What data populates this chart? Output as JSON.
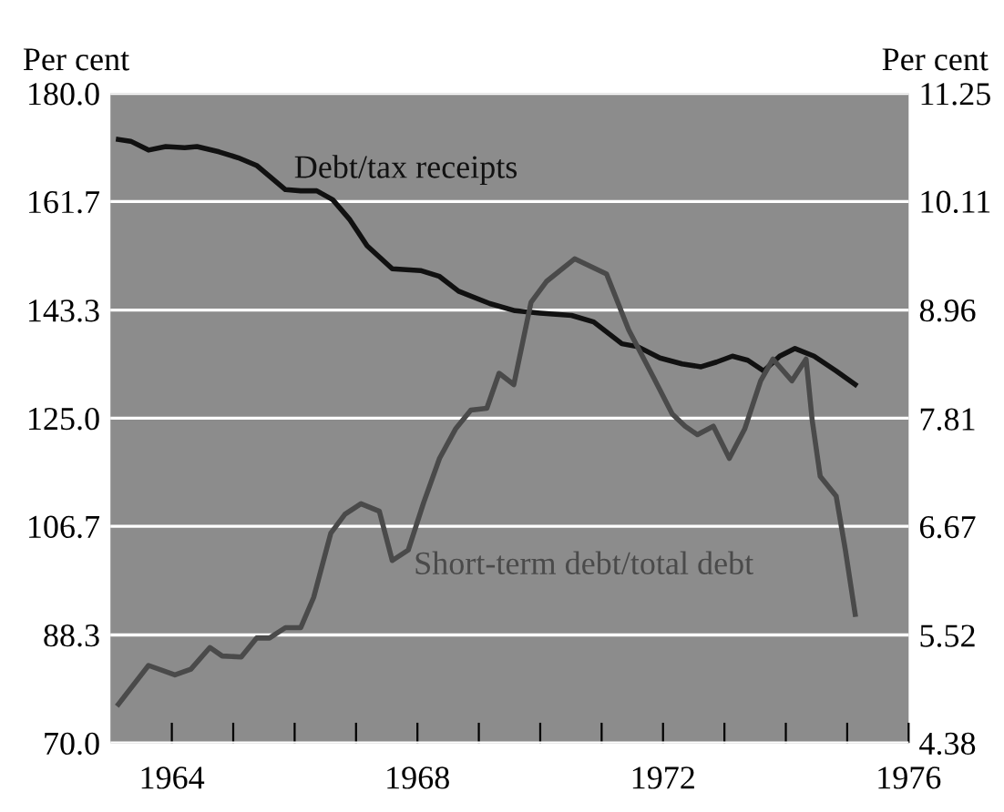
{
  "chart_data": {
    "type": "line",
    "ylabel": "Per cent",
    "y2label": "Per cent",
    "xlim": [
      1963,
      1976
    ],
    "xticks": [
      {
        "value": 1964,
        "label": "1964"
      },
      {
        "value": 1965,
        "label": null
      },
      {
        "value": 1966,
        "label": null
      },
      {
        "value": 1967,
        "label": null
      },
      {
        "value": 1968,
        "label": "1968"
      },
      {
        "value": 1969,
        "label": null
      },
      {
        "value": 1970,
        "label": null
      },
      {
        "value": 1971,
        "label": null
      },
      {
        "value": 1972,
        "label": "1972"
      },
      {
        "value": 1973,
        "label": null
      },
      {
        "value": 1974,
        "label": null
      },
      {
        "value": 1975,
        "label": null
      },
      {
        "value": 1976,
        "label": "1976"
      }
    ],
    "ylim": [
      70,
      180
    ],
    "yticks": [
      {
        "value": 70,
        "label": "70.0"
      },
      88.3,
      106.7,
      {
        "value": 125,
        "label": "125.0"
      },
      143.3,
      161.7,
      {
        "value": 180,
        "label": "180.0"
      }
    ],
    "y2lim": [
      4.38,
      11.25
    ],
    "y2ticks": [
      4.38,
      5.52,
      6.67,
      7.81,
      8.96,
      10.11,
      11.25
    ],
    "grid": "y",
    "series": [
      {
        "name": "Debt/tax receipts",
        "color": "#111111",
        "axis": "y",
        "x": [
          1963.13,
          1963.33,
          1963.62,
          1963.9,
          1964.21,
          1964.41,
          1964.77,
          1965.08,
          1965.38,
          1965.85,
          1966.1,
          1966.36,
          1966.62,
          1966.9,
          1967.18,
          1967.59,
          1968.05,
          1968.36,
          1968.67,
          1969.18,
          1969.59,
          1970.0,
          1970.51,
          1970.87,
          1971.33,
          1971.59,
          1971.95,
          1972.31,
          1972.62,
          1972.87,
          1973.13,
          1973.38,
          1973.64,
          1973.9,
          1974.15,
          1974.46,
          1974.82,
          1975.13
        ],
        "values": [
          172.2,
          171.9,
          170.4,
          171.0,
          170.8,
          171.0,
          170.1,
          169.1,
          167.8,
          163.7,
          163.5,
          163.5,
          162.0,
          158.6,
          154.2,
          150.3,
          150.0,
          149.0,
          146.5,
          144.4,
          143.2,
          142.8,
          142.4,
          141.3,
          137.6,
          137.1,
          135.2,
          134.2,
          133.7,
          134.5,
          135.5,
          134.8,
          133.0,
          135.5,
          136.8,
          135.5,
          133.0,
          130.7
        ]
      },
      {
        "name": "Short-term debt/total debt",
        "color": "#4a4a4a",
        "axis": "y2",
        "x": [
          1963.13,
          1963.62,
          1964.05,
          1964.31,
          1964.62,
          1964.82,
          1965.13,
          1965.38,
          1965.59,
          1965.85,
          1966.1,
          1966.31,
          1966.59,
          1966.82,
          1967.08,
          1967.38,
          1967.59,
          1967.85,
          1968.1,
          1968.36,
          1968.62,
          1968.87,
          1969.13,
          1969.33,
          1969.57,
          1969.85,
          1970.1,
          1970.56,
          1971.08,
          1971.44,
          1971.85,
          1972.15,
          1972.36,
          1972.56,
          1972.82,
          1973.08,
          1973.33,
          1973.59,
          1973.79,
          1974.1,
          1974.33,
          1974.43,
          1974.56,
          1974.82,
          1974.97,
          1975.13
        ],
        "values": [
          4.79,
          5.2,
          5.1,
          5.16,
          5.39,
          5.3,
          5.29,
          5.49,
          5.49,
          5.6,
          5.6,
          5.92,
          6.6,
          6.8,
          6.91,
          6.83,
          6.31,
          6.42,
          6.92,
          7.39,
          7.7,
          7.9,
          7.92,
          8.29,
          8.17,
          9.04,
          9.26,
          9.5,
          9.34,
          8.75,
          8.24,
          7.86,
          7.73,
          7.64,
          7.73,
          7.39,
          7.7,
          8.21,
          8.44,
          8.21,
          8.44,
          7.79,
          7.2,
          6.99,
          6.42,
          5.74
        ]
      }
    ]
  }
}
